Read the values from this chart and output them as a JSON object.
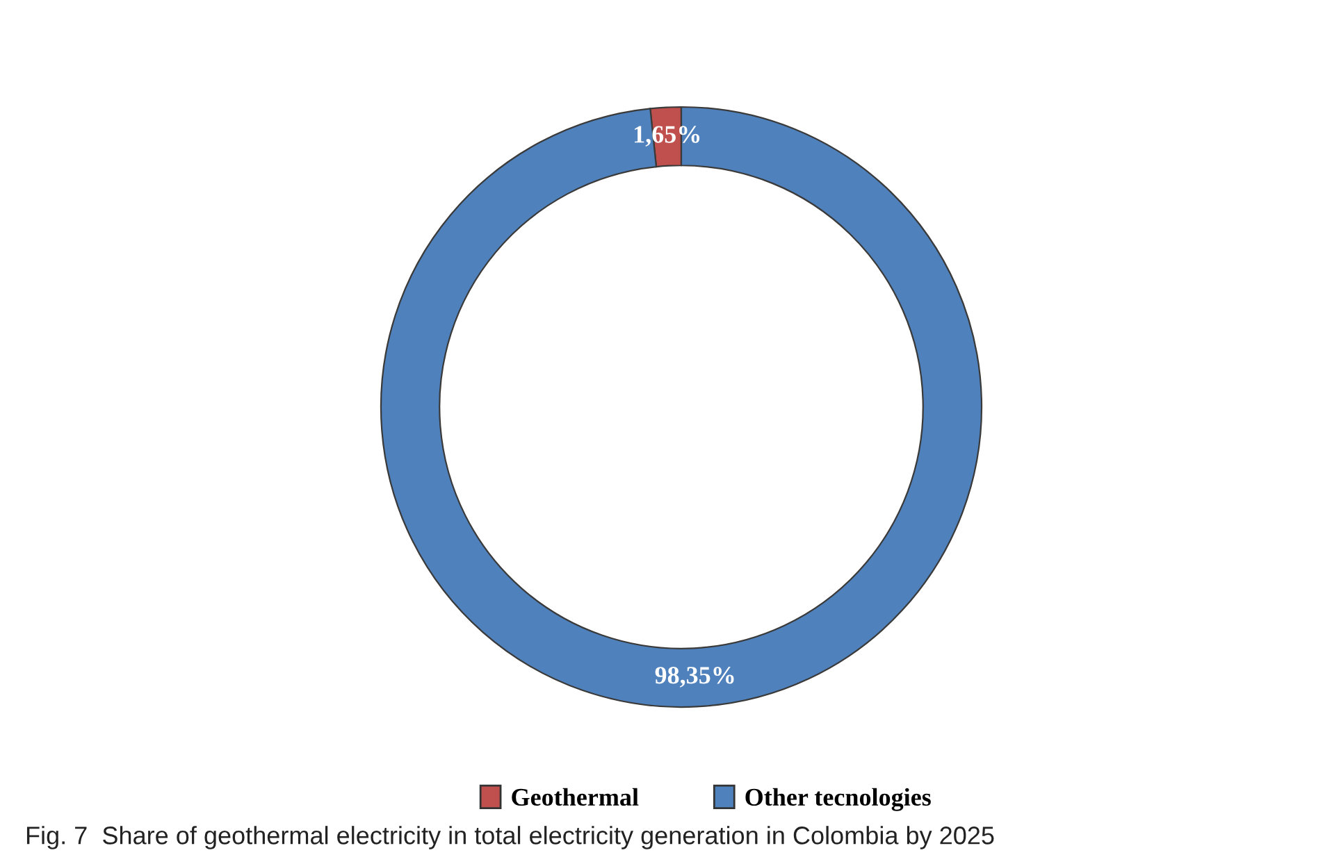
{
  "chart_data": {
    "type": "donut",
    "categories": [
      "Geothermal",
      "Other tecnologies"
    ],
    "values": [
      1.65,
      98.35
    ],
    "colors": [
      "#c0504d",
      "#4f81bd"
    ],
    "value_labels": [
      "1,65%",
      "98,35%"
    ],
    "legend": "bottom",
    "annotations": [
      "Fig. 7  Share of geothermal electricity in total electricity generation in Colombia by 2025"
    ]
  }
}
